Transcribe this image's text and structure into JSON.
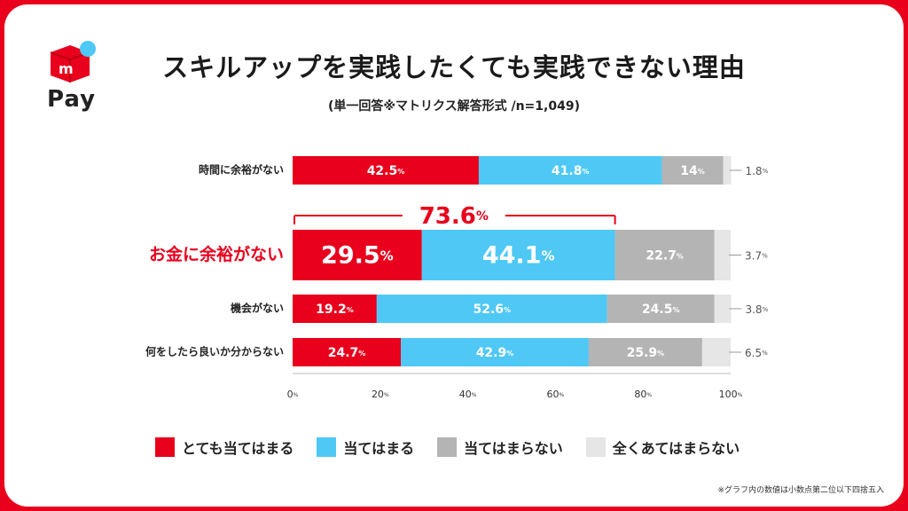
{
  "brand": {
    "logo_letter": "m",
    "logo_text": "Pay"
  },
  "header": {
    "title": "スキルアップを実践したくても実践できない理由",
    "subtitle": "(単一回答※マトリクス解答形式 /n=1,049)"
  },
  "footnote": "※グラフ内の数値は小数点第二位以下四捨五入",
  "colors": {
    "series": [
      "#e8001c",
      "#4fc8f5",
      "#b4b4b4",
      "#e6e6e6"
    ],
    "highlight": "#e8001c",
    "brand": "#e8001c"
  },
  "chart_data": {
    "type": "bar",
    "orientation": "horizontal",
    "stacked": true,
    "categories": [
      "時間に余裕がない",
      "お金に余裕がない",
      "機会がない",
      "何をしたら良いか分からない"
    ],
    "highlight_category": "お金に余裕がない",
    "series": [
      {
        "name": "とても当てはまる",
        "values": [
          42.5,
          29.5,
          19.2,
          24.7
        ]
      },
      {
        "name": "当てはまる",
        "values": [
          41.8,
          44.1,
          52.6,
          42.9
        ]
      },
      {
        "name": "当てはまらない",
        "values": [
          14,
          22.7,
          24.5,
          25.9
        ]
      },
      {
        "name": "全くあてはまらない",
        "values": [
          1.8,
          3.7,
          3.8,
          6.5
        ]
      }
    ],
    "data_labels": [
      [
        "42.5",
        "41.8",
        "14",
        "1.8"
      ],
      [
        "29.5",
        "44.1",
        "22.7",
        "3.7"
      ],
      [
        "19.2",
        "52.6",
        "24.5",
        "3.8"
      ],
      [
        "24.7",
        "42.9",
        "25.9",
        "6.5"
      ]
    ],
    "unit": "%",
    "bracket_annotation": {
      "category": "お金に余裕がない",
      "value": "73.6",
      "unit": "%"
    },
    "xlim": [
      0,
      100
    ],
    "xticks": [
      0,
      20,
      40,
      60,
      80,
      100
    ],
    "xtick_labels": [
      "0",
      "20",
      "40",
      "60",
      "80",
      "100"
    ],
    "grid": false,
    "legend_position": "bottom"
  }
}
